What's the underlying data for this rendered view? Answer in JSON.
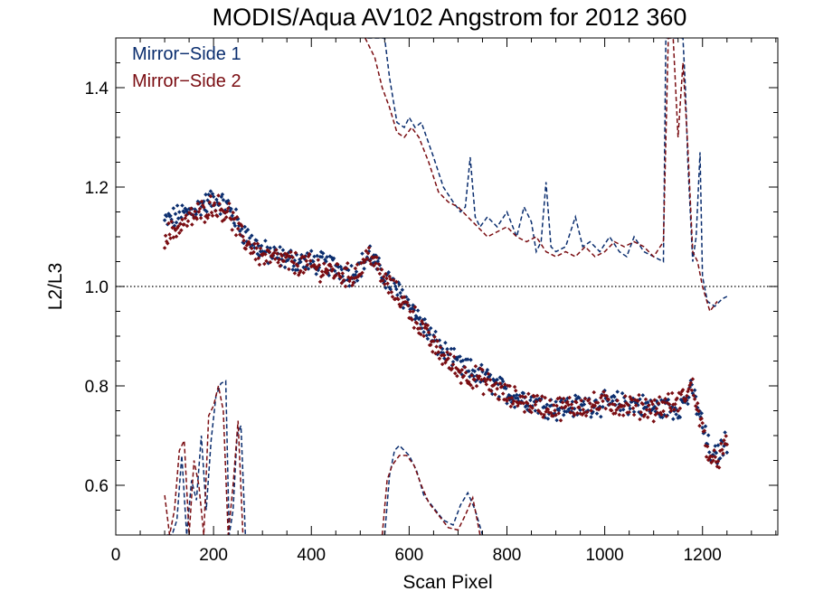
{
  "chart_data": {
    "type": "scatter",
    "title": "MODIS/Aqua AV102 Angstrom for 2012 360",
    "xlabel": "Scan Pixel",
    "ylabel": "L2/L3",
    "xlim": [
      0,
      1354
    ],
    "ylim": [
      0.5,
      1.5
    ],
    "x_ticks": [
      0,
      200,
      400,
      600,
      800,
      1000,
      1200
    ],
    "y_ticks": [
      0.6,
      0.8,
      1.0,
      1.2,
      1.4
    ],
    "x_tick_labels": [
      "0",
      "200",
      "400",
      "600",
      "800",
      "1000",
      "1200"
    ],
    "y_tick_labels": [
      "0.6",
      "0.8",
      "1.0",
      "1.2",
      "1.4"
    ],
    "reference_line": {
      "y": 1.0,
      "style": "dotted"
    },
    "legend": {
      "position": "top-left",
      "entries": [
        "Mirror−Side 1",
        "Mirror−Side 2"
      ]
    },
    "series": [
      {
        "name": "Mirror−Side 1",
        "color": "#0a2d6e",
        "mean_profile": {
          "x": [
            100,
            150,
            200,
            230,
            260,
            300,
            350,
            400,
            450,
            480,
            500,
            520,
            540,
            560,
            600,
            650,
            700,
            750,
            800,
            850,
            900,
            950,
            1000,
            1050,
            1100,
            1150,
            1180,
            1200,
            1220,
            1250
          ],
          "y": [
            1.13,
            1.15,
            1.175,
            1.16,
            1.11,
            1.07,
            1.055,
            1.05,
            1.04,
            1.025,
            1.04,
            1.065,
            1.03,
            1.01,
            0.965,
            0.89,
            0.84,
            0.82,
            0.785,
            0.77,
            0.755,
            0.76,
            0.765,
            0.765,
            0.755,
            0.755,
            0.79,
            0.72,
            0.65,
            0.69
          ]
        },
        "upper_dashed": {
          "x": [
            515,
            540,
            550,
            560,
            575,
            590,
            600,
            612,
            625,
            650,
            670,
            690,
            705,
            715,
            725,
            735,
            745,
            760,
            780,
            800,
            820,
            835,
            850,
            860,
            870,
            880,
            890,
            900,
            920,
            940,
            955,
            970,
            990,
            1010,
            1030,
            1045,
            1060,
            1080,
            1100,
            1120,
            1125,
            1130,
            1135,
            1140,
            1150,
            1160,
            1165,
            1170,
            1180,
            1187,
            1195,
            1200,
            1210,
            1225,
            1240,
            1250
          ],
          "y": [
            1.5,
            1.5,
            1.5,
            1.42,
            1.33,
            1.32,
            1.34,
            1.32,
            1.33,
            1.26,
            1.2,
            1.17,
            1.15,
            1.16,
            1.26,
            1.14,
            1.12,
            1.14,
            1.12,
            1.15,
            1.1,
            1.16,
            1.13,
            1.07,
            1.09,
            1.21,
            1.08,
            1.07,
            1.08,
            1.14,
            1.08,
            1.09,
            1.07,
            1.1,
            1.07,
            1.06,
            1.1,
            1.07,
            1.06,
            1.05,
            1.5,
            1.5,
            1.5,
            1.5,
            1.5,
            1.5,
            1.4,
            1.25,
            1.05,
            1.1,
            1.27,
            1.02,
            0.97,
            0.96,
            0.975,
            0.98
          ]
        },
        "lower_dashed_segments": [
          {
            "x": [
              105,
              115,
              125,
              135,
              145,
              155,
              165,
              175,
              185,
              195,
              205,
              215,
              225,
              232,
              240,
              248,
              256,
              265
            ],
            "y": [
              0.5,
              0.5,
              0.53,
              0.66,
              0.5,
              0.61,
              0.57,
              0.7,
              0.55,
              0.69,
              0.78,
              0.805,
              0.81,
              0.5,
              0.55,
              0.7,
              0.72,
              0.5
            ]
          },
          {
            "x": [
              550,
              560,
              570,
              580,
              590,
              600,
              615,
              630,
              650,
              670,
              690,
              705,
              720,
              735,
              750
            ],
            "y": [
              0.5,
              0.62,
              0.67,
              0.68,
              0.67,
              0.66,
              0.63,
              0.58,
              0.555,
              0.53,
              0.52,
              0.56,
              0.585,
              0.55,
              0.5
            ]
          }
        ]
      },
      {
        "name": "Mirror−Side 2",
        "color": "#7a0d12",
        "mean_profile": {
          "x": [
            100,
            150,
            200,
            230,
            260,
            300,
            350,
            400,
            450,
            480,
            500,
            520,
            540,
            560,
            600,
            650,
            700,
            750,
            800,
            850,
            900,
            950,
            1000,
            1050,
            1100,
            1150,
            1180,
            1200,
            1220,
            1250
          ],
          "y": [
            1.1,
            1.135,
            1.165,
            1.15,
            1.095,
            1.06,
            1.05,
            1.04,
            1.03,
            1.02,
            1.035,
            1.07,
            1.025,
            1.0,
            0.955,
            0.88,
            0.83,
            0.81,
            0.78,
            0.765,
            0.755,
            0.76,
            0.765,
            0.76,
            0.755,
            0.765,
            0.8,
            0.71,
            0.64,
            0.68
          ]
        },
        "upper_dashed": {
          "x": [
            510,
            530,
            545,
            560,
            575,
            590,
            605,
            620,
            640,
            660,
            680,
            700,
            720,
            740,
            760,
            780,
            800,
            820,
            840,
            860,
            880,
            900,
            920,
            940,
            960,
            980,
            1000,
            1020,
            1040,
            1060,
            1080,
            1100,
            1120,
            1130,
            1140,
            1150,
            1160,
            1170,
            1180,
            1190,
            1200,
            1215,
            1230
          ],
          "y": [
            1.5,
            1.46,
            1.4,
            1.36,
            1.31,
            1.3,
            1.32,
            1.3,
            1.25,
            1.19,
            1.17,
            1.16,
            1.14,
            1.12,
            1.1,
            1.11,
            1.12,
            1.1,
            1.09,
            1.1,
            1.07,
            1.06,
            1.07,
            1.06,
            1.08,
            1.06,
            1.07,
            1.09,
            1.08,
            1.09,
            1.08,
            1.06,
            1.09,
            1.5,
            1.5,
            1.3,
            1.45,
            1.28,
            1.07,
            1.05,
            1.0,
            0.95,
            0.97
          ]
        },
        "lower_dashed_segments": [
          {
            "x": [
              100,
              110,
              120,
              130,
              140,
              150,
              160,
              170,
              180,
              190,
              200,
              210,
              220,
              230,
              240,
              250,
              260
            ],
            "y": [
              0.58,
              0.5,
              0.55,
              0.67,
              0.69,
              0.5,
              0.65,
              0.6,
              0.5,
              0.74,
              0.76,
              0.8,
              0.75,
              0.5,
              0.6,
              0.73,
              0.5
            ]
          },
          {
            "x": [
              545,
              555,
              565,
              580,
              595,
              610,
              625,
              640,
              660,
              680,
              700,
              715,
              730,
              745
            ],
            "y": [
              0.5,
              0.61,
              0.64,
              0.66,
              0.66,
              0.64,
              0.6,
              0.565,
              0.54,
              0.515,
              0.51,
              0.54,
              0.575,
              0.5
            ]
          }
        ]
      }
    ]
  }
}
